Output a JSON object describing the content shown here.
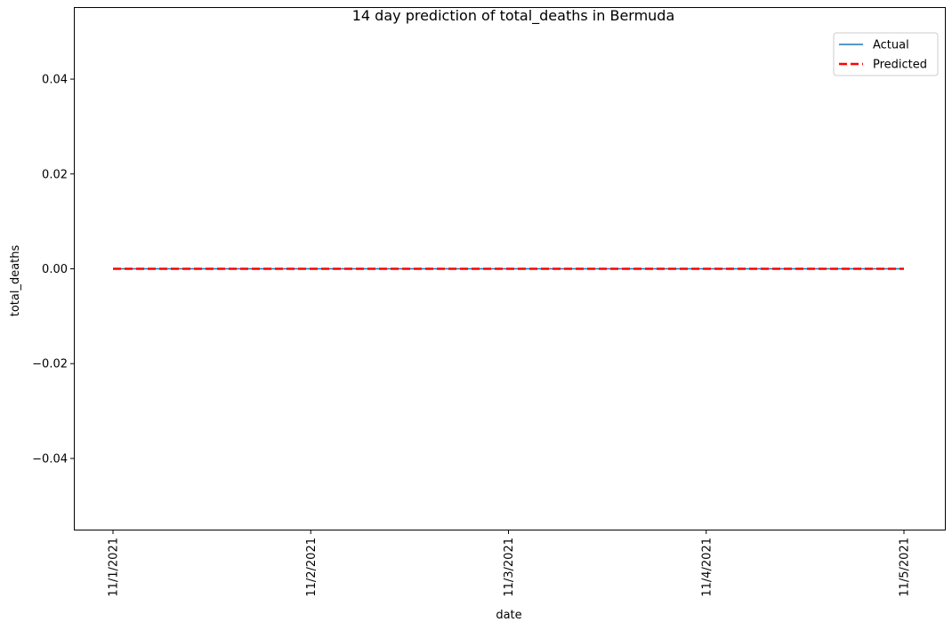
{
  "chart_data": {
    "type": "line",
    "title": "14 day prediction of total_deaths in Bermuda",
    "xlabel": "date",
    "ylabel": "total_deaths",
    "x": [
      "11/1/2021",
      "11/2/2021",
      "11/3/2021",
      "11/4/2021",
      "11/5/2021"
    ],
    "x_tick_labels": [
      "11/1/2021",
      "11/2/2021",
      "11/3/2021",
      "11/4/2021",
      "11/5/2021"
    ],
    "ylim": [
      -0.055,
      0.055
    ],
    "y_ticks": [
      -0.04,
      -0.02,
      0.0,
      0.02,
      0.04
    ],
    "y_tick_labels": [
      "−0.04",
      "−0.02",
      "0.00",
      "0.02",
      "0.04"
    ],
    "grid": false,
    "legend_position": "top-right",
    "series": [
      {
        "name": "Actual",
        "values": [
          0,
          0,
          0,
          0,
          0
        ],
        "color": "#1f77b4",
        "style": "solid"
      },
      {
        "name": "Predicted",
        "values": [
          0,
          0,
          0,
          0,
          0
        ],
        "color": "#ff0000",
        "style": "dashed"
      }
    ]
  }
}
